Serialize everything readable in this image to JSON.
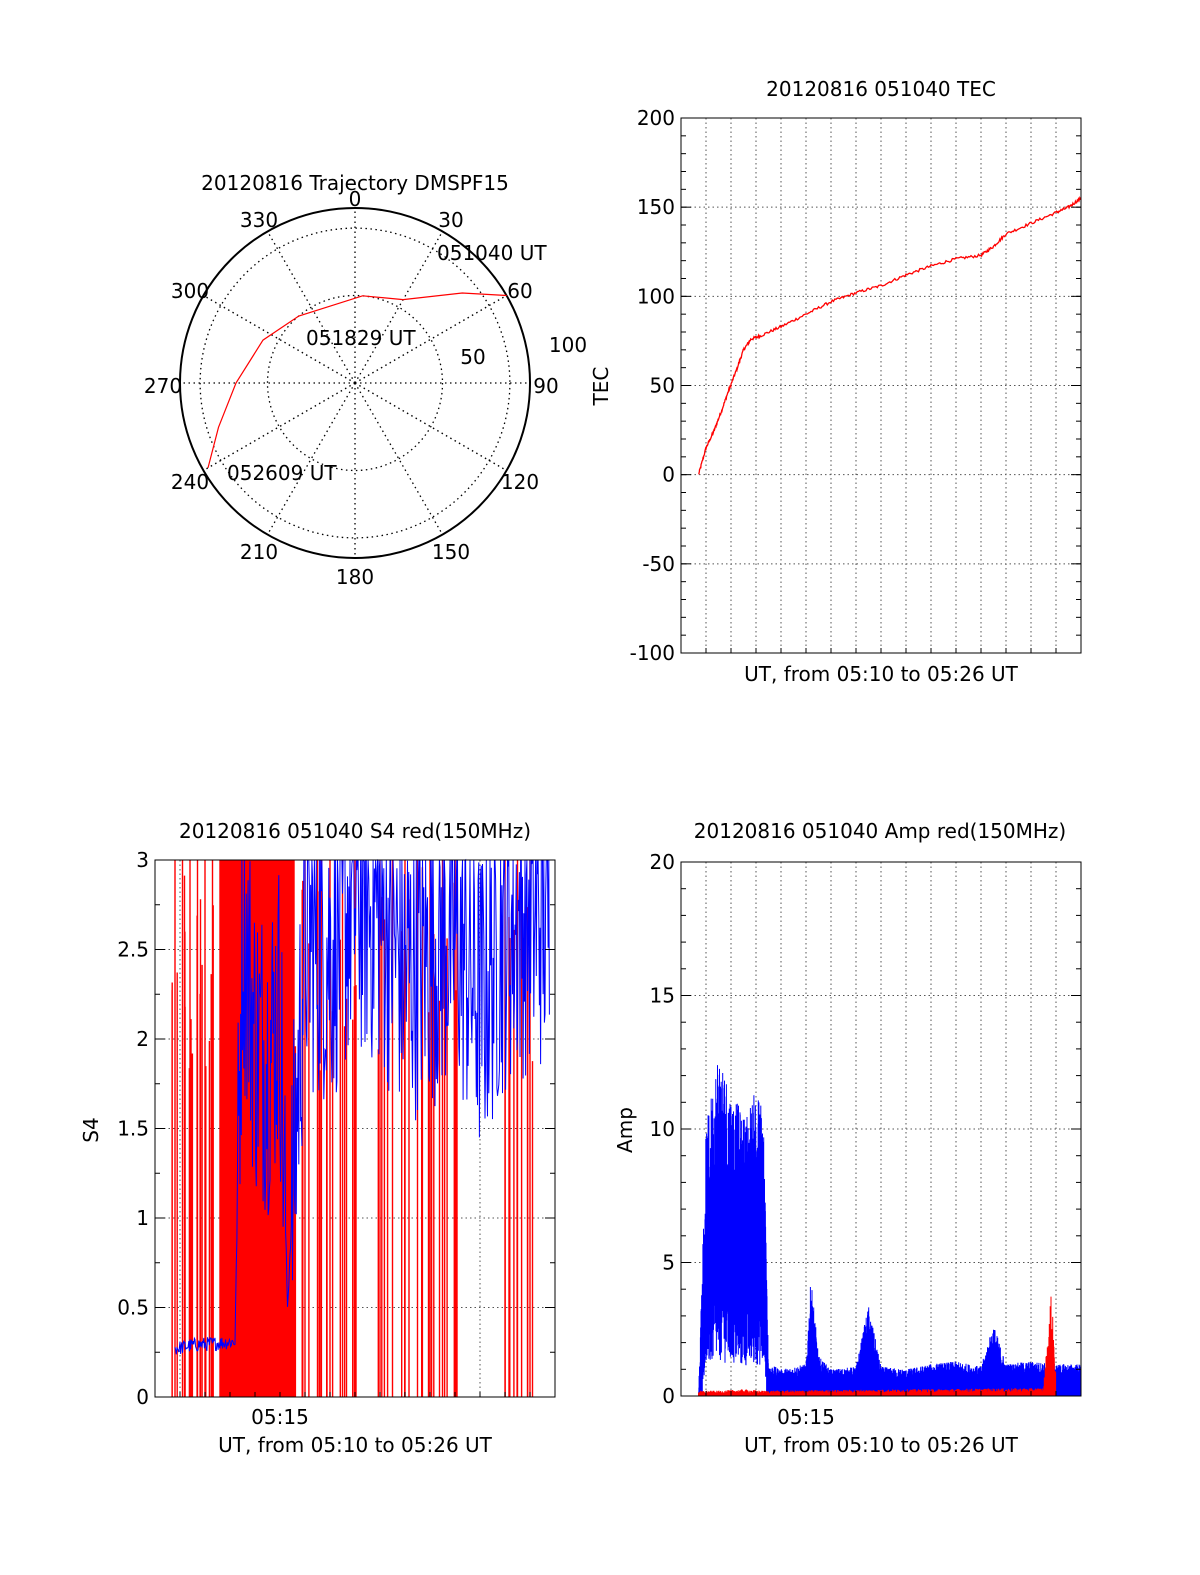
{
  "colors": {
    "red": "#ff0000",
    "blue": "#0000ff",
    "axis": "#000000",
    "background": "#ffffff"
  },
  "chart_data": [
    {
      "id": "trajectory",
      "type": "polar-scatter",
      "title": "20120816 Trajectory DMSPF15",
      "angle_labels": [
        "0",
        "30",
        "60",
        "90",
        "120",
        "150",
        "180",
        "210",
        "240",
        "270",
        "300",
        "330"
      ],
      "radial_labels": [
        "50",
        "100"
      ],
      "radial_max": 100,
      "annotations": [
        "051040 UT",
        "051829 UT",
        "052609 UT"
      ],
      "series": [
        {
          "color": "red",
          "points": [
            [
              60,
              100
            ],
            [
              50,
              80
            ],
            [
              30,
              55
            ],
            [
              5,
              50
            ],
            [
              320,
              50
            ],
            [
              295,
              58
            ],
            [
              270,
              68
            ],
            [
              252,
              82
            ],
            [
              240,
              97
            ]
          ]
        }
      ]
    },
    {
      "id": "tec",
      "type": "line",
      "title": "20120816 051040 TEC",
      "xlabel": "UT, from 05:10 to 05:26 UT",
      "ylabel": "TEC",
      "xlim": [
        0,
        16
      ],
      "ylim": [
        -100,
        200
      ],
      "yticks": [
        "-100",
        "-50",
        "0",
        "50",
        "100",
        "150",
        "200"
      ],
      "grid": true,
      "series": [
        {
          "color": "red",
          "x": [
            0.7,
            1.0,
            1.3,
            1.6,
            1.9,
            2.2,
            2.5,
            2.8,
            3.2,
            4.0,
            5.0,
            6.0,
            7.0,
            8.0,
            9.0,
            10.0,
            11.0,
            12.0,
            12.5,
            13.0,
            14.0,
            15.0,
            15.5,
            16.0
          ],
          "y": [
            0,
            15,
            24,
            35,
            47,
            58,
            70,
            76,
            78,
            83,
            90,
            97,
            102,
            106,
            112,
            117,
            121,
            123,
            128,
            135,
            141,
            147,
            150,
            155
          ]
        }
      ]
    },
    {
      "id": "s4",
      "type": "line",
      "title": "20120816 051040 S4 red(150MHz)",
      "xlabel": "UT, from 05:10 to 05:26 UT",
      "ylabel": "S4",
      "xticks": [
        "05:15"
      ],
      "xlim": [
        0,
        16
      ],
      "ylim": [
        0,
        3
      ],
      "yticks": [
        "0",
        "0.5",
        "1",
        "1.5",
        "2",
        "2.5",
        "3"
      ],
      "grid": true,
      "series": [
        {
          "color": "red",
          "x": [
            0.8,
            1.1,
            1.4,
            1.7,
            2.0,
            2.3,
            2.6,
            2.8,
            3.0,
            3.3,
            4.0,
            4.5,
            5.0,
            5.5,
            6.0,
            6.5,
            7.0,
            7.5,
            8.0,
            9.0,
            9.5,
            10.0,
            10.5,
            11.0,
            11.5,
            12.0,
            14.0,
            14.5,
            15.0
          ],
          "y": [
            3,
            3,
            3,
            3,
            3,
            3,
            3,
            3,
            3,
            3,
            3,
            3,
            3,
            3,
            3,
            3,
            3,
            3,
            3,
            3,
            3,
            3,
            3,
            3,
            3,
            3,
            3,
            3,
            3
          ]
        },
        {
          "color": "blue",
          "x": [
            0.8,
            1.5,
            2.5,
            3.2,
            3.5,
            4.0,
            4.5,
            5.0,
            5.3,
            6.0,
            7.0,
            8.0,
            9.0,
            10.0,
            11.0,
            12.0,
            13.0,
            14.0,
            15.0,
            15.8
          ],
          "y": [
            0.27,
            0.29,
            0.3,
            0.31,
            2.7,
            2.0,
            1.9,
            2.2,
            0.5,
            2.6,
            2.5,
            2.8,
            2.7,
            2.4,
            2.5,
            2.6,
            2.2,
            2.6,
            2.7,
            2.7
          ]
        }
      ]
    },
    {
      "id": "amp",
      "type": "line",
      "title": "20120816 051040 Amp red(150MHz)",
      "xlabel": "UT, from 05:10 to 05:26 UT",
      "ylabel": "Amp",
      "xticks": [
        "05:15"
      ],
      "xlim": [
        0,
        16
      ],
      "ylim": [
        0,
        20
      ],
      "yticks": [
        "0",
        "5",
        "10",
        "15",
        "20"
      ],
      "grid": true,
      "series": [
        {
          "color": "blue",
          "x": [
            0.7,
            1.0,
            1.5,
            2.0,
            2.5,
            3.0,
            3.3,
            3.5,
            4.0,
            5.0,
            5.2,
            5.5,
            6.0,
            7.0,
            7.5,
            8.0,
            9.0,
            10.0,
            11.0,
            12.0,
            12.5,
            13.0,
            14.0,
            15.0,
            16.0
          ],
          "y": [
            0,
            10,
            13.2,
            11.5,
            10.5,
            11.5,
            11,
            1.2,
            1.0,
            1.2,
            4.5,
            1.5,
            1.0,
            1.1,
            3.4,
            1.1,
            1.0,
            1.2,
            1.3,
            1.1,
            2.7,
            1.2,
            1.3,
            1.2,
            1.2
          ]
        },
        {
          "color": "red",
          "x": [
            0.7,
            1.5,
            2.5,
            3.3,
            14.5,
            14.8,
            15.0
          ],
          "y": [
            0.2,
            0.2,
            0.25,
            0.2,
            0.3,
            4.0,
            1.0
          ]
        }
      ]
    }
  ]
}
